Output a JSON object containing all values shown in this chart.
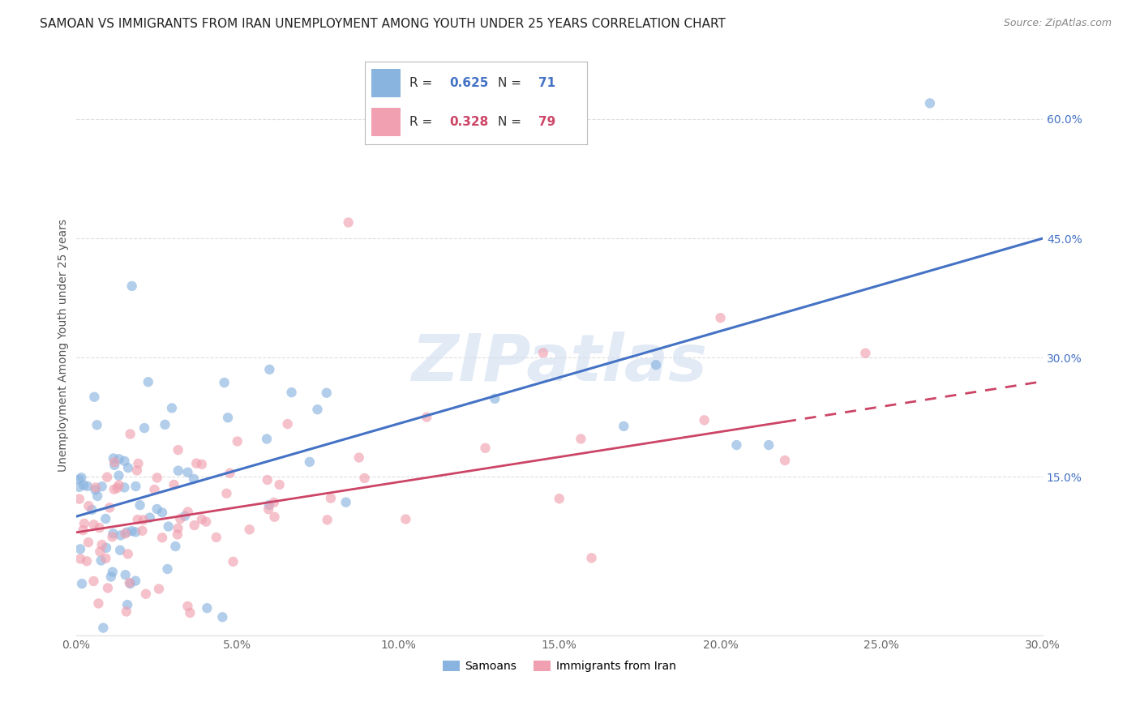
{
  "title": "SAMOAN VS IMMIGRANTS FROM IRAN UNEMPLOYMENT AMONG YOUTH UNDER 25 YEARS CORRELATION CHART",
  "source": "Source: ZipAtlas.com",
  "xlabel_ticks": [
    "0.0%",
    "5.0%",
    "10.0%",
    "15.0%",
    "20.0%",
    "25.0%",
    "30.0%"
  ],
  "ylabel_ticks": [
    "15.0%",
    "30.0%",
    "45.0%",
    "60.0%"
  ],
  "ylabel": "Unemployment Among Youth under 25 years",
  "xlim": [
    0.0,
    0.3
  ],
  "ylim": [
    -0.05,
    0.68
  ],
  "r_samoans": 0.625,
  "n_samoans": 71,
  "r_iran": 0.328,
  "n_iran": 79,
  "legend_label_samoans": "Samoans",
  "legend_label_iran": "Immigrants from Iran",
  "color_samoans": "#8ab4e0",
  "color_iran": "#f0a0b0",
  "color_line_samoans": "#4472c4",
  "color_line_iran": "#cc4466",
  "watermark": "ZIPatlas",
  "watermark_color": "#d0ddf0",
  "background_color": "#ffffff",
  "title_fontsize": 11,
  "grid_color": "#dddddd",
  "tick_color": "#666666",
  "ylabel_color": "#555555",
  "right_tick_color": "#4472c4",
  "line_blue_x0": 0.0,
  "line_blue_y0": 0.1,
  "line_blue_x1": 0.3,
  "line_blue_y1": 0.45,
  "line_pink_x0": 0.0,
  "line_pink_y0": 0.08,
  "line_pink_x1": 0.3,
  "line_pink_y1": 0.27,
  "line_pink_solid_end": 0.22,
  "scatter_marker_size": 80,
  "scatter_alpha": 0.65
}
